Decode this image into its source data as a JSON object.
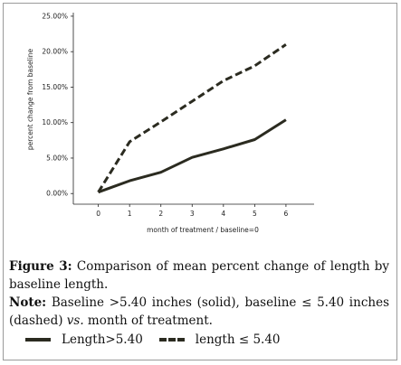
{
  "chart_data": {
    "type": "line",
    "x": [
      0,
      1,
      2,
      3,
      4,
      5,
      6
    ],
    "x_tick_labels": [
      "0",
      "1",
      "2",
      "3",
      "4",
      "5",
      "6"
    ],
    "y_tick_labels": [
      "0.00%",
      "5.00%",
      "10.00%",
      "15.00%",
      "20.00%",
      "25.00%"
    ],
    "y_ticks": [
      0,
      5,
      10,
      15,
      20,
      25
    ],
    "xlim": [
      -0.8,
      6.9
    ],
    "ylim": [
      -1.5,
      25.5
    ],
    "xlabel": "month of treatment / baseline=0",
    "ylabel": "percent change from baseline",
    "grid": false,
    "series": [
      {
        "name": "Length>5.40",
        "style": "solid",
        "values": [
          0.2,
          1.8,
          3.0,
          5.1,
          6.3,
          7.6,
          10.4
        ]
      },
      {
        "name": "length ≤ 5.40",
        "style": "dashed",
        "values": [
          0.2,
          7.3,
          10.1,
          13.0,
          15.9,
          18.0,
          21.0
        ]
      }
    ],
    "line_color": "#2b2b20"
  },
  "caption": {
    "figure_label": "Figure 3:",
    "figure_text": " Comparison of mean percent change of length by baseline length.",
    "note_label": "Note:",
    "note_text_1": " Baseline >5.40 inches (solid), baseline ≤ 5.40 inches (dashed) ",
    "note_vs": "vs.",
    "note_text_2": " month of treatment."
  },
  "legend": {
    "solid_label": "Length>5.40",
    "dashed_label": "length ≤ 5.40"
  }
}
